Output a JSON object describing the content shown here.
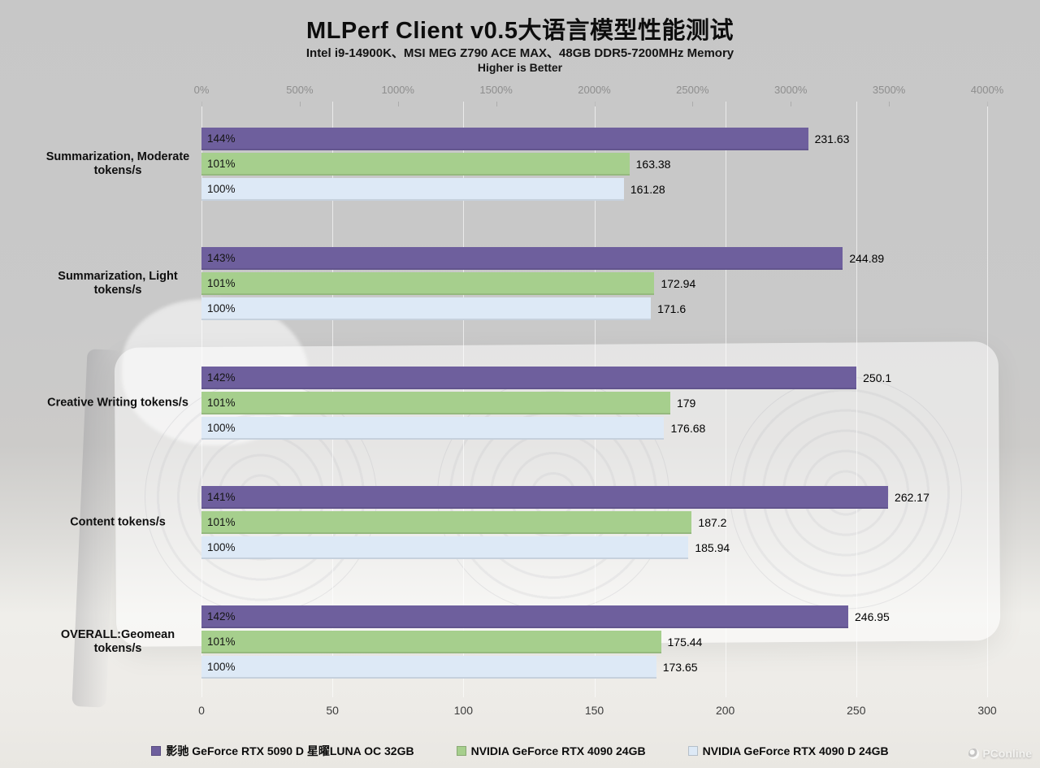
{
  "title": "MLPerf Client v0.5大语言模型性能测试",
  "subtitle": "Intel i9-14900K、MSI MEG Z790 ACE MAX、48GB DDR5-7200MHz Memory",
  "note": "Higher is Better",
  "watermark": "PConline",
  "chart_data": {
    "type": "bar",
    "orientation": "horizontal",
    "title": "MLPerf Client v0.5大语言模型性能测试",
    "subtitle": "Intel i9-14900K、MSI MEG Z790 ACE MAX、48GB DDR5-7200MHz Memory",
    "note": "Higher is Better",
    "grid": true,
    "legend_position": "bottom",
    "value_axis": {
      "min": 0,
      "max": 300,
      "step": 50,
      "ticks": [
        "0",
        "50",
        "100",
        "150",
        "200",
        "250",
        "300"
      ]
    },
    "percent_axis": {
      "min": 0,
      "max": 4000,
      "step": 500,
      "ticks": [
        "0%",
        "500%",
        "1000%",
        "1500%",
        "2000%",
        "2500%",
        "3000%",
        "3500%",
        "4000%"
      ]
    },
    "series": [
      {
        "name": "影驰 GeForce RTX 5090 D 星曜LUNA OC 32GB",
        "color": "#6e5f9d"
      },
      {
        "name": "NVIDIA GeForce RTX 4090 24GB",
        "color": "#a6cf8d"
      },
      {
        "name": "NVIDIA GeForce RTX 4090 D 24GB",
        "color": "#dde9f6"
      }
    ],
    "groups": [
      {
        "category": "Summarization, Moderate tokens/s",
        "lines": [
          "Summarization, Moderate",
          "tokens/s"
        ],
        "bars": [
          {
            "percent": "144%",
            "value": 231.63,
            "label": "231.63"
          },
          {
            "percent": "101%",
            "value": 163.38,
            "label": "163.38"
          },
          {
            "percent": "100%",
            "value": 161.28,
            "label": "161.28"
          }
        ]
      },
      {
        "category": "Summarization, Light tokens/s",
        "lines": [
          "Summarization, Light",
          "tokens/s"
        ],
        "bars": [
          {
            "percent": "143%",
            "value": 244.89,
            "label": "244.89"
          },
          {
            "percent": "101%",
            "value": 172.94,
            "label": "172.94"
          },
          {
            "percent": "100%",
            "value": 171.6,
            "label": "171.6"
          }
        ]
      },
      {
        "category": "Creative Writing tokens/s",
        "lines": [
          "Creative Writing tokens/s"
        ],
        "bars": [
          {
            "percent": "142%",
            "value": 250.1,
            "label": "250.1"
          },
          {
            "percent": "101%",
            "value": 179,
            "label": "179"
          },
          {
            "percent": "100%",
            "value": 176.68,
            "label": "176.68"
          }
        ]
      },
      {
        "category": "Content tokens/s",
        "lines": [
          "Content tokens/s"
        ],
        "bars": [
          {
            "percent": "141%",
            "value": 262.17,
            "label": "262.17"
          },
          {
            "percent": "101%",
            "value": 187.2,
            "label": "187.2"
          },
          {
            "percent": "100%",
            "value": 185.94,
            "label": "185.94"
          }
        ]
      },
      {
        "category": "OVERALL:Geomean tokens/s",
        "lines": [
          "OVERALL:Geomean",
          "tokens/s"
        ],
        "bars": [
          {
            "percent": "142%",
            "value": 246.95,
            "label": "246.95"
          },
          {
            "percent": "101%",
            "value": 175.44,
            "label": "175.44"
          },
          {
            "percent": "100%",
            "value": 173.65,
            "label": "173.65"
          }
        ]
      }
    ]
  }
}
